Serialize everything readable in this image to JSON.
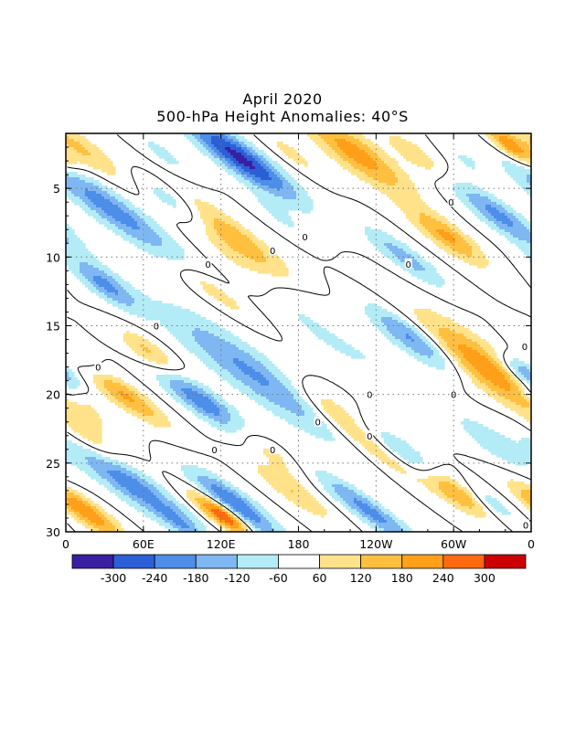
{
  "chart_data": {
    "type": "heatmap",
    "title": "April 2020",
    "subtitle": "500-hPa Height Anomalies: 40°S",
    "x_ticks": [
      "0",
      "60E",
      "120E",
      "180",
      "120W",
      "60W",
      "0"
    ],
    "x_range_deg_east": [
      0,
      360
    ],
    "y_ticks": [
      "5",
      "10",
      "15",
      "20",
      "25",
      "30"
    ],
    "y_range_day": [
      1,
      30
    ],
    "y_reversed": true,
    "grid": true,
    "contour_label": "0",
    "colorbar": {
      "labels": [
        "-300",
        "-240",
        "-180",
        "-120",
        "-60",
        "60",
        "120",
        "180",
        "240",
        "300"
      ],
      "colors": [
        "#3a1fa3",
        "#2c5fd6",
        "#4d8ee8",
        "#7fb7f3",
        "#b3ecf6",
        "#ffffff",
        "#ffe28a",
        "#ffc040",
        "#ff9f1a",
        "#ff6a10",
        "#cc0000"
      ]
    },
    "blobs": [
      {
        "lon": 10,
        "day": 2,
        "len": 60,
        "wid": 13,
        "val": 130
      },
      {
        "lon": 35,
        "day": 6.5,
        "len": 95,
        "wid": 17,
        "val": -210
      },
      {
        "lon": 85,
        "day": 6,
        "len": 55,
        "wid": 13,
        "val": -190
      },
      {
        "lon": 75,
        "day": 2.5,
        "len": 40,
        "wid": 10,
        "val": -80
      },
      {
        "lon": 135,
        "day": 2.8,
        "len": 75,
        "wid": 16,
        "val": -320
      },
      {
        "lon": 175,
        "day": 2.5,
        "len": 40,
        "wid": 9,
        "val": 80
      },
      {
        "lon": 120,
        "day": 8,
        "len": 95,
        "wid": 16,
        "val": 200
      },
      {
        "lon": 165,
        "day": 7,
        "len": 40,
        "wid": 9,
        "val": -70
      },
      {
        "lon": 225,
        "day": 2.5,
        "len": 70,
        "wid": 18,
        "val": 210
      },
      {
        "lon": 270,
        "day": 2.5,
        "len": 40,
        "wid": 11,
        "val": 110
      },
      {
        "lon": 310,
        "day": 3,
        "len": 25,
        "wid": 8,
        "val": -70
      },
      {
        "lon": 345,
        "day": 2,
        "len": 35,
        "wid": 10,
        "val": 250
      },
      {
        "lon": 335,
        "day": 7,
        "len": 60,
        "wid": 14,
        "val": -200
      },
      {
        "lon": 295,
        "day": 8.5,
        "len": 50,
        "wid": 13,
        "val": 190
      },
      {
        "lon": 262,
        "day": 10,
        "len": 55,
        "wid": 12,
        "val": -150
      },
      {
        "lon": 30,
        "day": 12,
        "len": 45,
        "wid": 13,
        "val": -190
      },
      {
        "lon": 115,
        "day": 12.5,
        "len": 50,
        "wid": 10,
        "val": 100
      },
      {
        "lon": 160,
        "day": 12.5,
        "len": 85,
        "wid": 17,
        "val": 140
      },
      {
        "lon": 185,
        "day": 14,
        "len": 90,
        "wid": 19,
        "val": -200
      },
      {
        "lon": 270,
        "day": 16,
        "len": 60,
        "wid": 15,
        "val": -230
      },
      {
        "lon": 205,
        "day": 15,
        "len": 40,
        "wid": 9,
        "val": 80
      },
      {
        "lon": 65,
        "day": 17,
        "len": 40,
        "wid": 12,
        "val": 150
      },
      {
        "lon": 12,
        "day": 17.5,
        "len": 45,
        "wid": 11,
        "val": -90
      },
      {
        "lon": 145,
        "day": 18.5,
        "len": 120,
        "wid": 22,
        "val": -190
      },
      {
        "lon": 205,
        "day": 21,
        "len": 50,
        "wid": 13,
        "val": 110
      },
      {
        "lon": 323,
        "day": 18,
        "len": 95,
        "wid": 22,
        "val": 230
      },
      {
        "lon": 355,
        "day": 18.5,
        "len": 30,
        "wid": 11,
        "val": -230
      },
      {
        "lon": 45,
        "day": 20,
        "len": 55,
        "wid": 12,
        "val": 200
      },
      {
        "lon": 0,
        "day": 20,
        "len": 18,
        "wid": 8,
        "val": -100
      },
      {
        "lon": 105,
        "day": 20.5,
        "len": 60,
        "wid": 14,
        "val": -230
      },
      {
        "lon": 240,
        "day": 24,
        "len": 70,
        "wid": 12,
        "val": 120
      },
      {
        "lon": 265,
        "day": 24.5,
        "len": 55,
        "wid": 12,
        "val": -150
      },
      {
        "lon": 330,
        "day": 23.5,
        "len": 55,
        "wid": 14,
        "val": -100
      },
      {
        "lon": 20,
        "day": 23.5,
        "len": 40,
        "wid": 12,
        "val": 110
      },
      {
        "lon": 50,
        "day": 26.5,
        "len": 90,
        "wid": 17,
        "val": -220
      },
      {
        "lon": 155,
        "day": 24,
        "len": 50,
        "wid": 10,
        "val": 90
      },
      {
        "lon": 175,
        "day": 27,
        "len": 55,
        "wid": 12,
        "val": 120
      },
      {
        "lon": 235,
        "day": 28.5,
        "len": 70,
        "wid": 12,
        "val": -200
      },
      {
        "lon": 300,
        "day": 27,
        "len": 45,
        "wid": 12,
        "val": 210
      },
      {
        "lon": 330,
        "day": 28,
        "len": 35,
        "wid": 10,
        "val": -100
      },
      {
        "lon": 15,
        "day": 28.5,
        "len": 50,
        "wid": 12,
        "val": 230
      },
      {
        "lon": 110,
        "day": 28,
        "len": 40,
        "wid": 11,
        "val": 140
      },
      {
        "lon": 125,
        "day": 29,
        "len": 30,
        "wid": 10,
        "val": 250
      },
      {
        "lon": 130,
        "day": 28,
        "len": 60,
        "wid": 14,
        "val": -260
      },
      {
        "lon": 90,
        "day": 29.5,
        "len": 30,
        "wid": 8,
        "val": -90
      }
    ]
  }
}
